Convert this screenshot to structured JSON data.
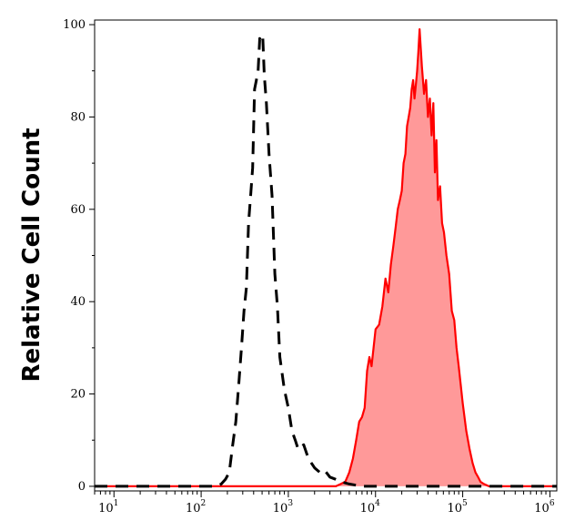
{
  "chart_data": {
    "type": "area",
    "title": "",
    "xlabel": "",
    "ylabel": "Relative Cell Count",
    "x_scale": "log",
    "xlim": [
      6,
      1200000
    ],
    "ylim": [
      -1,
      101
    ],
    "x_tick_values": [
      10,
      100,
      1000,
      10000,
      100000,
      1000000
    ],
    "x_tick_labels": [
      {
        "base": "10",
        "exp": "1"
      },
      {
        "base": "10",
        "exp": "2"
      },
      {
        "base": "10",
        "exp": "3"
      },
      {
        "base": "10",
        "exp": "4"
      },
      {
        "base": "10",
        "exp": "5"
      },
      {
        "base": "10",
        "exp": "6"
      }
    ],
    "y_tick_values": [
      0,
      20,
      40,
      60,
      80,
      100
    ],
    "y_tick_labels": [
      "0",
      "20",
      "40",
      "60",
      "80",
      "100"
    ],
    "grid": false,
    "legend": "none",
    "series": [
      {
        "style": "dashed",
        "line_color": "#000000",
        "fill_color": "none",
        "x": [
          6,
          100,
          150,
          170,
          190,
          210,
          230,
          250,
          270,
          290,
          310,
          330,
          350,
          370,
          390,
          410,
          430,
          450,
          470,
          490,
          510,
          530,
          560,
          600,
          650,
          700,
          750,
          800,
          900,
          1000,
          1100,
          1200,
          1300,
          1500,
          1700,
          2000,
          2300,
          2600,
          3000,
          3500,
          4000,
          5000,
          7000,
          10000,
          1200000
        ],
        "y": [
          0,
          0,
          0,
          0.5,
          1.5,
          3,
          9,
          14,
          22,
          30,
          38,
          43,
          57,
          63,
          69,
          86,
          88,
          90,
          97,
          96,
          97,
          89,
          83,
          72,
          63,
          46,
          39,
          28,
          21,
          17,
          12,
          10,
          8,
          9,
          6,
          4,
          3,
          3.5,
          2,
          1.5,
          1,
          0.5,
          0,
          0,
          0
        ]
      },
      {
        "style": "solid",
        "line_color": "#ff0000",
        "fill_color": "#ff9999",
        "x": [
          6,
          3000,
          3500,
          4000,
          4500,
          5000,
          5500,
          6000,
          6500,
          7000,
          7500,
          8000,
          8500,
          9000,
          9500,
          10000,
          11000,
          12000,
          13000,
          14000,
          15000,
          16000,
          17000,
          18000,
          19000,
          20000,
          21000,
          22000,
          23000,
          24000,
          25000,
          26000,
          27000,
          28000,
          29000,
          30000,
          31000,
          32000,
          34000,
          36000,
          38000,
          40000,
          42000,
          44000,
          46000,
          48000,
          50000,
          52000,
          55000,
          58000,
          61000,
          65000,
          70000,
          75000,
          80000,
          85000,
          90000,
          95000,
          100000,
          110000,
          120000,
          130000,
          140000,
          150000,
          160000,
          175000,
          200000,
          1200000
        ],
        "y": [
          0,
          0,
          0,
          0.5,
          1,
          3,
          6,
          10,
          14,
          15,
          17,
          25,
          28,
          26,
          30,
          34,
          35,
          39,
          45,
          42,
          48,
          52,
          56,
          60,
          62,
          64,
          70,
          72,
          78,
          80,
          82,
          86,
          88,
          84,
          87,
          90,
          94,
          99,
          91,
          85,
          88,
          80,
          84,
          76,
          83,
          68,
          75,
          62,
          65,
          57,
          55,
          50,
          46,
          38,
          36,
          30,
          26,
          22,
          18,
          12,
          8,
          5,
          3,
          2,
          1,
          0.5,
          0,
          0
        ]
      }
    ]
  }
}
